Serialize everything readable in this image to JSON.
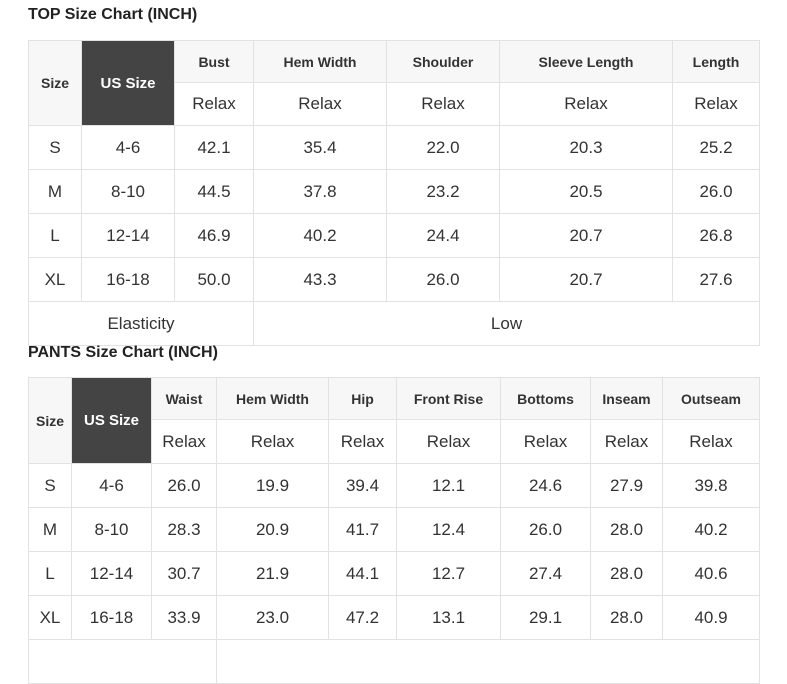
{
  "top": {
    "title": "TOP Size Chart (INCH)",
    "size_label": "Size",
    "us_size_label": "US Size",
    "columns": [
      "Bust",
      "Hem Width",
      "Shoulder",
      "Sleeve Length",
      "Length"
    ],
    "fit": [
      "Relax",
      "Relax",
      "Relax",
      "Relax",
      "Relax"
    ],
    "rows": [
      {
        "size": "S",
        "us": "4-6",
        "values": [
          "42.1",
          "35.4",
          "22.0",
          "20.3",
          "25.2"
        ]
      },
      {
        "size": "M",
        "us": "8-10",
        "values": [
          "44.5",
          "37.8",
          "23.2",
          "20.5",
          "26.0"
        ]
      },
      {
        "size": "L",
        "us": "12-14",
        "values": [
          "46.9",
          "40.2",
          "24.4",
          "20.7",
          "26.8"
        ]
      },
      {
        "size": "XL",
        "us": "16-18",
        "values": [
          "50.0",
          "43.3",
          "26.0",
          "20.7",
          "27.6"
        ]
      }
    ],
    "elasticity_label": "Elasticity",
    "elasticity_value": "Low"
  },
  "pants": {
    "title": "PANTS Size Chart (INCH)",
    "size_label": "Size",
    "us_size_label": "US Size",
    "columns": [
      "Waist",
      "Hem Width",
      "Hip",
      "Front Rise",
      "Bottoms",
      "Inseam",
      "Outseam"
    ],
    "fit": [
      "Relax",
      "Relax",
      "Relax",
      "Relax",
      "Relax",
      "Relax",
      "Relax"
    ],
    "rows": [
      {
        "size": "S",
        "us": "4-6",
        "values": [
          "26.0",
          "19.9",
          "39.4",
          "12.1",
          "24.6",
          "27.9",
          "39.8"
        ]
      },
      {
        "size": "M",
        "us": "8-10",
        "values": [
          "28.3",
          "20.9",
          "41.7",
          "12.4",
          "26.0",
          "28.0",
          "40.2"
        ]
      },
      {
        "size": "L",
        "us": "12-14",
        "values": [
          "30.7",
          "21.9",
          "44.1",
          "12.7",
          "27.4",
          "28.0",
          "40.6"
        ]
      },
      {
        "size": "XL",
        "us": "16-18",
        "values": [
          "33.9",
          "23.0",
          "47.2",
          "13.1",
          "29.1",
          "28.0",
          "40.9"
        ]
      }
    ]
  }
}
